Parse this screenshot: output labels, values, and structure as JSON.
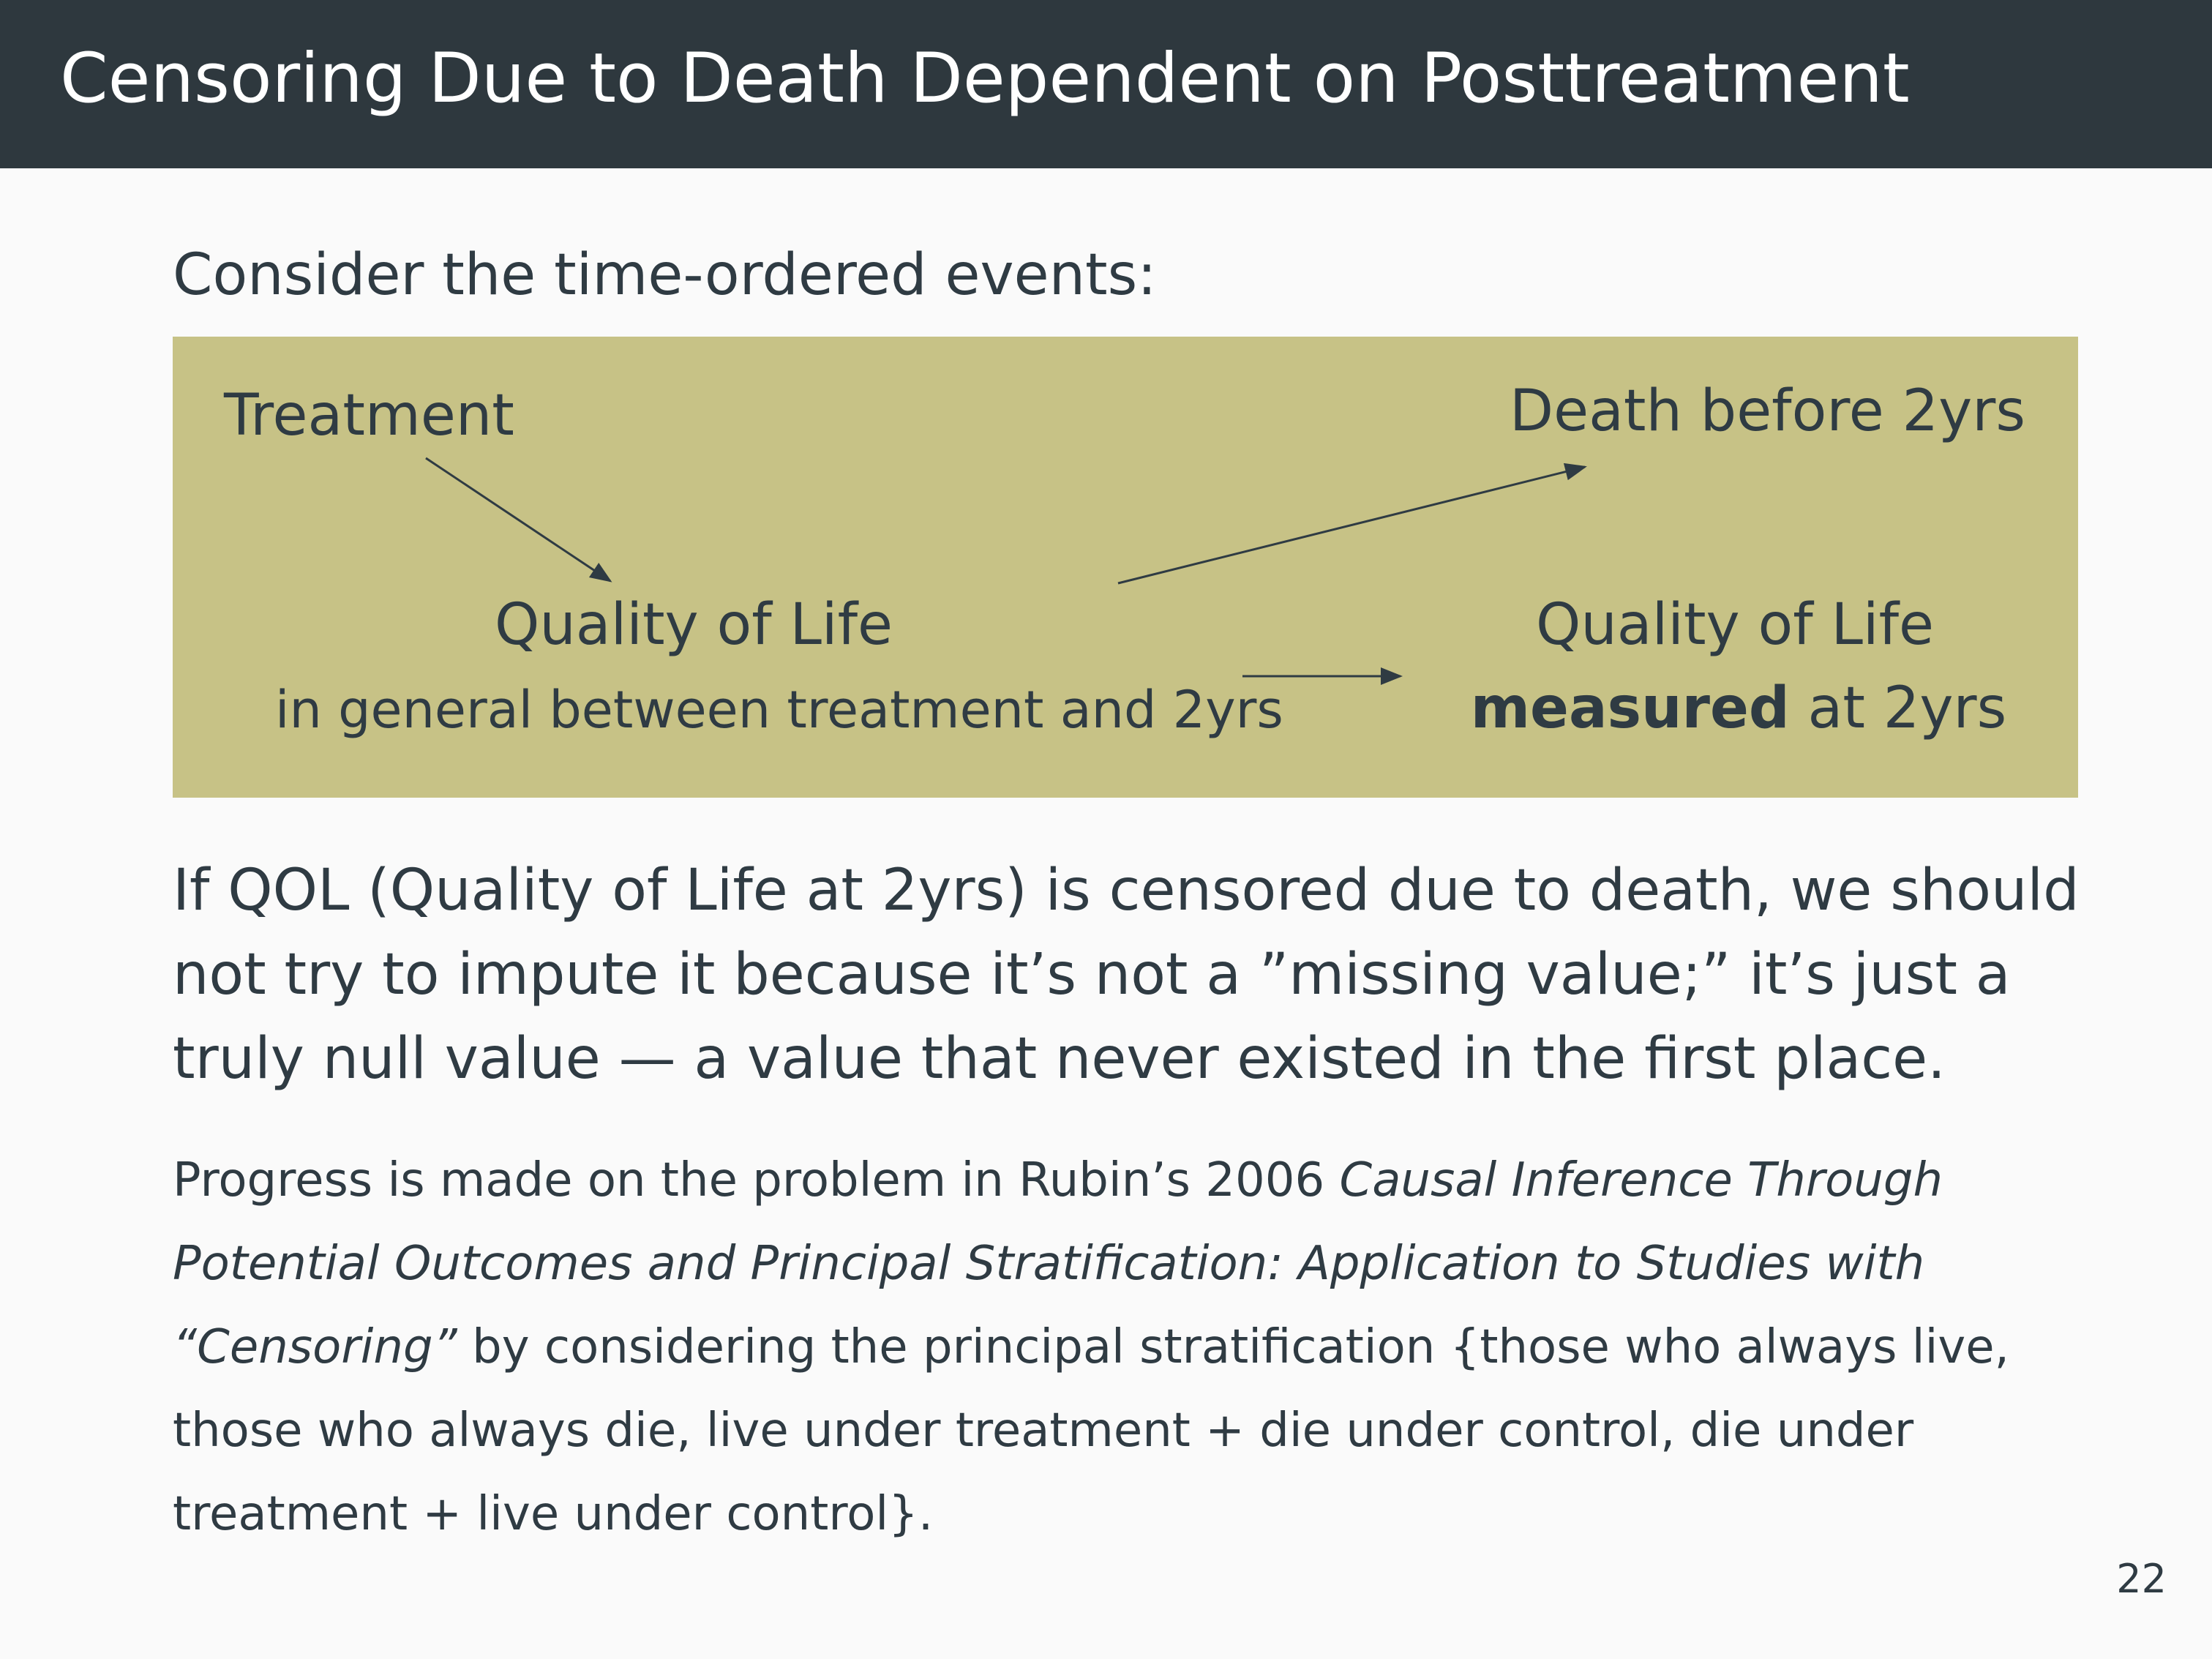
{
  "slide": {
    "title": "Censoring Due to Death Dependent on Posttreatment",
    "intro": "Consider the time-ordered events:",
    "page_number": "22"
  },
  "diagram": {
    "treatment": "Treatment",
    "death": "Death before 2yrs",
    "qol_general": "Quality of Life",
    "qol_general_sub": "in general between treatment and 2yrs",
    "qol_measured": "Quality of Life",
    "qol_measured_bold": "measured",
    "qol_measured_rest": " at 2yrs",
    "background_color": "#c7c286"
  },
  "paragraph1": "If QOL (Quality of Life at 2yrs) is censored due to death, we should not try to impute it because it’s not a ”missing value;” it’s just a truly null value — a value that never existed in the first place.",
  "paragraph2": {
    "lead": "Progress is made on the problem in Rubin’s 2006 ",
    "citation": "Causal Inference Through Potential Outcomes and Principal Stratification: Application to Studies with “Censoring”",
    "tail": " by considering the principal stratification {those who always live, those who always die, live under treatment + die under control, die under treatment + live under control}."
  },
  "colors": {
    "title_bar": "#2e383e",
    "text": "#2f3b43",
    "background": "#fafafa"
  }
}
